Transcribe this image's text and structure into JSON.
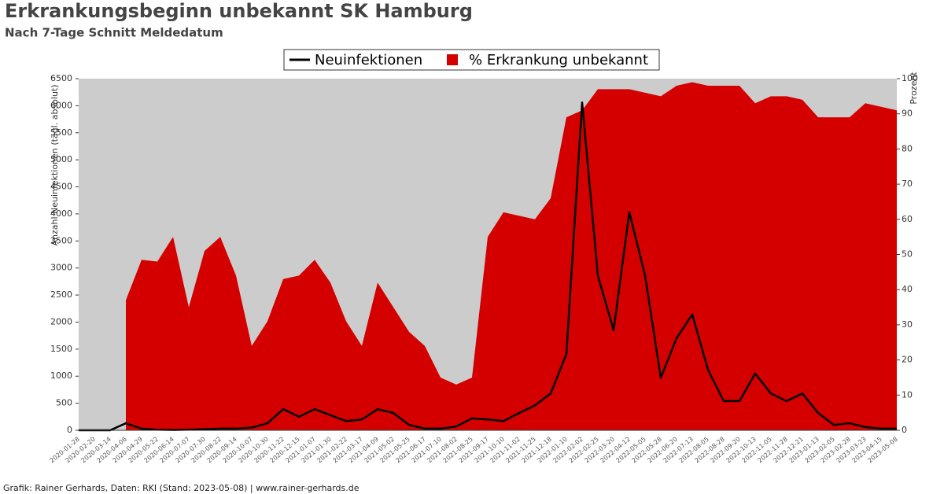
{
  "chart_data": {
    "type": "line-area",
    "title": "Erkrankungsbeginn unbekannt SK Hamburg",
    "subtitle": "Nach 7-Tage Schnitt Meldedatum",
    "y_label": "Anzahl Neuinfektionen (tägl. absolut)",
    "y2_label": "Prozent",
    "footer": "Grafik: Rainer Gerhards, Daten: RKI (Stand: 2023-05-08) | www.rainer-gerhards.de",
    "x": [
      "2020-01-28",
      "2020-02-20",
      "2020-03-14",
      "2020-04-06",
      "2020-04-29",
      "2020-05-22",
      "2020-06-14",
      "2020-07-07",
      "2020-07-30",
      "2020-08-22",
      "2020-09-14",
      "2020-10-07",
      "2020-10-30",
      "2020-11-22",
      "2020-12-15",
      "2021-01-07",
      "2021-01-30",
      "2021-02-22",
      "2021-03-17",
      "2021-04-09",
      "2021-05-02",
      "2021-05-25",
      "2021-06-17",
      "2021-07-10",
      "2021-08-02",
      "2021-08-25",
      "2021-09-17",
      "2021-10-10",
      "2021-11-02",
      "2021-11-25",
      "2021-12-18",
      "2022-01-10",
      "2022-02-02",
      "2022-02-25",
      "2022-03-20",
      "2022-04-12",
      "2022-05-05",
      "2022-05-28",
      "2022-06-20",
      "2022-07-13",
      "2022-08-05",
      "2022-08-28",
      "2022-09-20",
      "2022-10-13",
      "2022-11-05",
      "2022-11-28",
      "2022-12-21",
      "2023-01-13",
      "2023-02-05",
      "2023-02-28",
      "2023-03-23",
      "2023-04-15",
      "2023-05-08"
    ],
    "series": [
      {
        "name": "% Erkrankung unbekannt",
        "color": "#d40000",
        "axis": "y2",
        "kind": "area",
        "values": [
          null,
          null,
          null,
          37,
          48.5,
          48,
          55,
          35,
          51,
          55,
          44,
          24,
          31,
          43,
          44,
          48.5,
          42,
          31,
          24,
          42,
          35,
          28,
          24,
          15,
          13,
          15,
          55,
          62,
          61,
          60,
          66,
          89,
          91,
          97,
          97,
          97,
          96,
          95,
          98,
          99,
          98,
          98,
          98,
          93,
          95,
          95,
          94,
          89,
          89,
          89,
          93,
          92,
          91
        ]
      },
      {
        "name": "Neuinfektionen",
        "color": "#000000",
        "axis": "y",
        "kind": "line",
        "values": [
          0,
          0,
          0,
          130,
          30,
          10,
          5,
          10,
          20,
          30,
          30,
          50,
          130,
          390,
          250,
          390,
          280,
          170,
          200,
          390,
          320,
          100,
          30,
          30,
          70,
          220,
          200,
          170,
          320,
          460,
          680,
          1410,
          6060,
          2860,
          1850,
          4030,
          2860,
          970,
          1700,
          2140,
          1120,
          540,
          540,
          1050,
          680,
          540,
          680,
          320,
          100,
          130,
          60,
          30,
          30
        ]
      }
    ],
    "ylim": [
      0,
      6500
    ],
    "yticks": [
      0,
      500,
      1000,
      1500,
      2000,
      2500,
      3000,
      3500,
      4000,
      4500,
      5000,
      5500,
      6000,
      6500
    ],
    "y2lim": [
      0,
      100
    ],
    "y2ticks": [
      0,
      10,
      20,
      30,
      40,
      50,
      60,
      70,
      80,
      90,
      100
    ],
    "background": "#cccccc"
  }
}
